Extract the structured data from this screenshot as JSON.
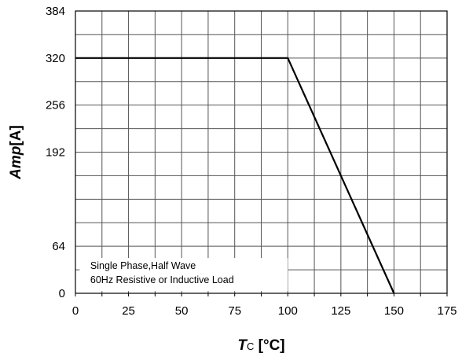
{
  "chart_data": {
    "type": "line",
    "title": "",
    "xlabel": {
      "main": "T",
      "sub": "C",
      "unit": " [°C]"
    },
    "ylabel": {
      "main": "Amp",
      "unit": "[A]"
    },
    "xlim": [
      0,
      175
    ],
    "ylim": [
      0,
      384
    ],
    "x_ticks": [
      "0",
      "25",
      "50",
      "75",
      "100",
      "125",
      "150",
      "175"
    ],
    "y_ticks": [
      "0",
      "64",
      "192",
      "256",
      "320",
      "384"
    ],
    "y_tick_values": [
      0,
      64,
      192,
      256,
      320,
      384
    ],
    "grid": true,
    "series": [
      {
        "x": [
          0,
          100,
          150
        ],
        "y": [
          320,
          320,
          0
        ],
        "color": "#000000"
      }
    ],
    "annotation": [
      "Single Phase,Half Wave",
      "60Hz Resistive or Inductive Load"
    ]
  }
}
